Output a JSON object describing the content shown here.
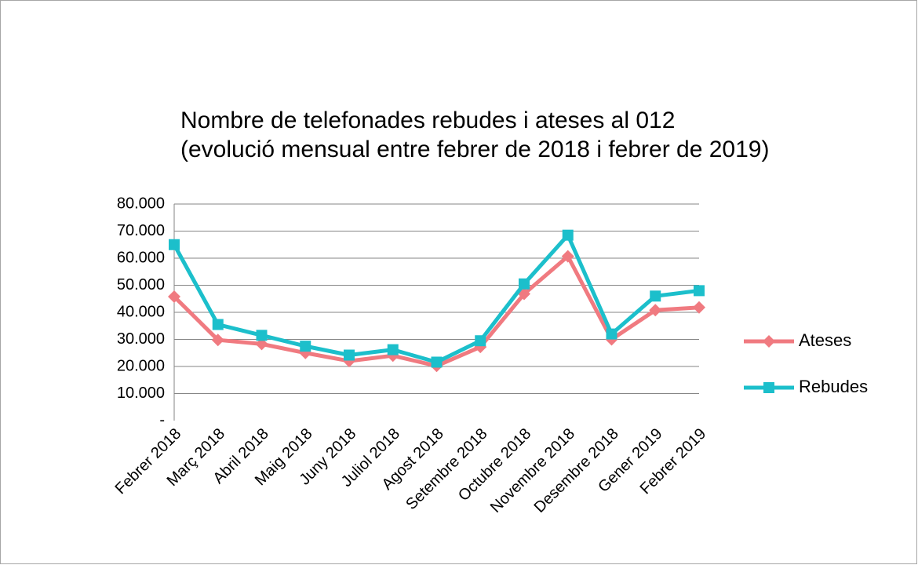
{
  "chart_data": {
    "type": "line",
    "title": [
      "Nombre de telefonades rebudes i ateses al 012",
      "(evolució mensual entre febrer de 2018 i febrer de 2019)"
    ],
    "categories": [
      "Febrer 2018",
      "Març 2018",
      "Abril 2018",
      "Maig 2018",
      "Juny 2018",
      "Juliol 2018",
      "Agost 2018",
      "Setembre 2018",
      "Octubre 2018",
      "Novembre 2018",
      "Desembre 2018",
      "Gener 2019",
      "Febrer 2019"
    ],
    "series": [
      {
        "name": "Ateses",
        "color": "#f07a80",
        "marker": "diamond",
        "values": [
          45800,
          29800,
          28300,
          25000,
          22000,
          24000,
          20200,
          27200,
          46800,
          60700,
          30000,
          40800,
          41800
        ]
      },
      {
        "name": "Rebudes",
        "color": "#1cbfcb",
        "marker": "square",
        "values": [
          65000,
          35500,
          31500,
          27500,
          24200,
          26200,
          21600,
          29500,
          50500,
          68500,
          32000,
          46000,
          48000
        ]
      }
    ],
    "ylim": [
      0,
      80000
    ],
    "yticks": [
      {
        "value": 0,
        "label": "-"
      },
      {
        "value": 10000,
        "label": "10.000"
      },
      {
        "value": 20000,
        "label": "20.000"
      },
      {
        "value": 30000,
        "label": "30.000"
      },
      {
        "value": 40000,
        "label": "40.000"
      },
      {
        "value": 50000,
        "label": "50.000"
      },
      {
        "value": 60000,
        "label": "60.000"
      },
      {
        "value": 70000,
        "label": "70.000"
      },
      {
        "value": 80000,
        "label": "80.000"
      }
    ],
    "grid": true,
    "legend": "right"
  }
}
